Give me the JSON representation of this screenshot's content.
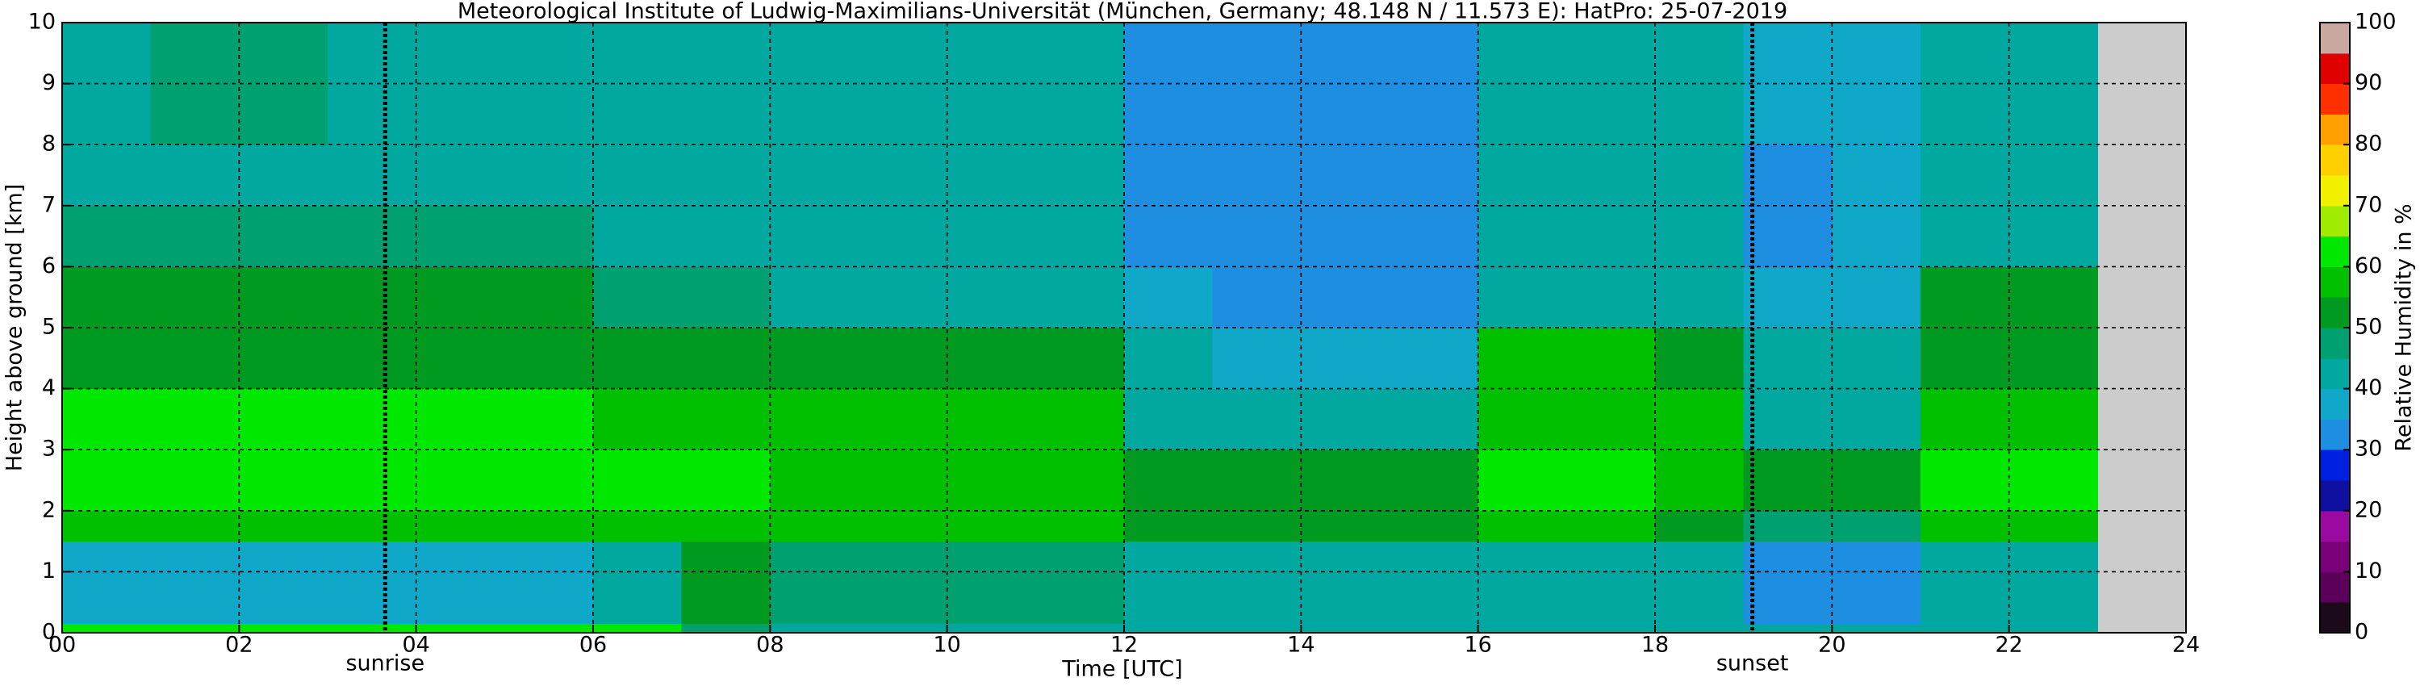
{
  "chart_data": {
    "type": "heatmap",
    "title": "Meteorological Institute of Ludwig-Maximilians-Universität (München, Germany; 48.148 N / 11.573 E):    HatPro: 25-07-2019",
    "xlabel": "Time [UTC]",
    "ylabel": "Height above ground [km]",
    "colorbar_label": "Relative Humidity in %",
    "xlim": [
      0,
      24
    ],
    "xticks": [
      {
        "value": 0,
        "label": "00"
      },
      {
        "value": 2,
        "label": "02"
      },
      {
        "value": 4,
        "label": "04"
      },
      {
        "value": 6,
        "label": "06"
      },
      {
        "value": 8,
        "label": "08"
      },
      10,
      12,
      14,
      16,
      18,
      20,
      22,
      24
    ],
    "ylim": [
      0,
      10
    ],
    "yticks": [
      0,
      1,
      2,
      3,
      4,
      5,
      6,
      7,
      8,
      9,
      10
    ],
    "zlim": [
      0,
      100
    ],
    "zticks": [
      0,
      10,
      20,
      30,
      40,
      50,
      60,
      70,
      80,
      90,
      100
    ],
    "colors": [
      "#1a0a1a",
      "#5a005a",
      "#7a007a",
      "#9a0aa0",
      "#1010a0",
      "#0020e0",
      "#1e8ee0",
      "#10a8c8",
      "#00a8a0",
      "#00a070",
      "#009a20",
      "#00c000",
      "#00e800",
      "#a0ec00",
      "#f0f000",
      "#ffd000",
      "#ffa000",
      "#ff3000",
      "#e00000",
      "#c8a8a0"
    ],
    "grid": true,
    "x_edges": [
      0,
      1,
      2,
      3,
      4,
      5,
      6,
      7,
      8,
      9,
      10,
      11,
      12,
      13,
      14,
      15,
      16,
      17,
      18,
      19,
      20,
      21,
      22,
      23
    ],
    "y_edges": [
      0,
      0.15,
      1.5,
      2,
      3,
      4,
      5,
      6,
      7,
      8,
      10
    ],
    "z": [
      [
        62,
        62,
        62,
        62,
        62,
        62,
        60,
        48,
        40,
        40,
        40,
        40,
        40,
        40,
        40,
        40,
        40,
        40,
        40,
        40,
        40,
        42,
        42
      ],
      [
        38,
        38,
        38,
        38,
        38,
        38,
        44,
        50,
        46,
        45,
        45,
        45,
        40,
        40,
        40,
        40,
        42,
        42,
        44,
        34,
        34,
        40,
        40
      ],
      [
        57,
        57,
        57,
        57,
        57,
        57,
        57,
        57,
        56,
        56,
        56,
        55,
        50,
        50,
        50,
        52,
        58,
        58,
        52,
        45,
        45,
        57,
        57
      ],
      [
        62,
        62,
        62,
        62,
        62,
        62,
        61,
        60,
        59,
        59,
        59,
        58,
        50,
        50,
        50,
        50,
        62,
        62,
        55,
        50,
        50,
        62,
        62
      ],
      [
        60,
        60,
        60,
        60,
        60,
        60,
        59,
        58,
        57,
        57,
        57,
        57,
        43,
        43,
        43,
        43,
        58,
        58,
        55,
        43,
        43,
        58,
        58
      ],
      [
        53,
        53,
        53,
        53,
        53,
        53,
        52,
        52,
        52,
        52,
        52,
        53,
        40,
        38,
        38,
        38,
        55,
        55,
        52,
        40,
        40,
        53,
        53
      ],
      [
        50,
        50,
        50,
        50,
        50,
        50,
        46,
        45,
        43,
        43,
        43,
        42,
        35,
        33,
        33,
        34,
        40,
        40,
        42,
        35,
        38,
        50,
        50
      ],
      [
        45,
        45,
        45,
        45,
        45,
        45,
        42,
        42,
        41,
        41,
        41,
        40,
        33,
        32,
        32,
        33,
        40,
        40,
        40,
        34,
        38,
        44,
        44
      ],
      [
        42,
        42,
        42,
        42,
        42,
        42,
        41,
        41,
        40,
        40,
        40,
        40,
        33,
        32,
        32,
        33,
        40,
        40,
        40,
        34,
        38,
        42,
        42
      ],
      [
        44,
        45,
        45,
        44,
        44,
        44,
        42,
        41,
        40,
        40,
        40,
        40,
        34,
        33,
        33,
        34,
        40,
        40,
        40,
        35,
        38,
        44,
        44
      ]
    ],
    "annotations": [
      {
        "text": "sunrise",
        "x": 3.65
      },
      {
        "text": "sunset",
        "x": 19.1
      }
    ]
  }
}
